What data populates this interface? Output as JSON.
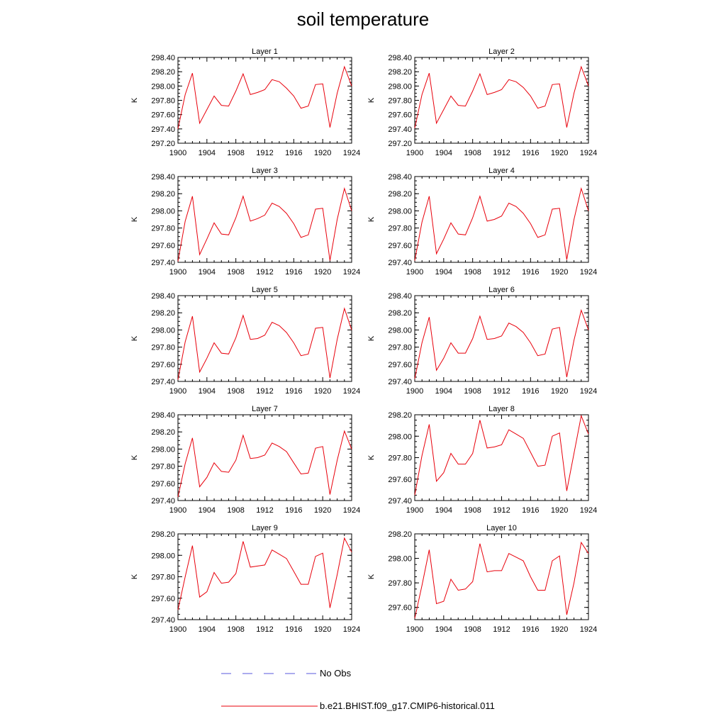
{
  "title": "soil temperature",
  "legend": {
    "no_obs_label": "No Obs",
    "model_label": "b.e21.BHIST.f09_g17.CMIP6-historical.011",
    "no_obs_color": "#5a5adc",
    "model_color": "#e8000b"
  },
  "chart_data": [
    {
      "type": "line",
      "title": "Layer 1",
      "ylabel": "K",
      "xlim": [
        1900,
        1924
      ],
      "ylim": [
        297.2,
        298.4
      ],
      "xticks": [
        "1900",
        "1904",
        "1908",
        "1912",
        "1916",
        "1920",
        "1924"
      ],
      "yticks": [
        "297.20",
        "297.40",
        "297.60",
        "297.80",
        "298.00",
        "298.20",
        "298.40"
      ],
      "series": [
        {
          "name": "b.e21.BHIST.f09_g17.CMIP6-historical.011",
          "x": [
            1900,
            1901,
            1902,
            1903,
            1904,
            1905,
            1906,
            1907,
            1908,
            1909,
            1910,
            1911,
            1912,
            1913,
            1914,
            1915,
            1916,
            1917,
            1918,
            1919,
            1920,
            1921,
            1922,
            1923,
            1924
          ],
          "y": [
            297.4,
            297.88,
            298.18,
            297.48,
            297.67,
            297.86,
            297.73,
            297.72,
            297.93,
            298.17,
            297.88,
            297.91,
            297.95,
            298.09,
            298.06,
            297.97,
            297.86,
            297.69,
            297.72,
            298.02,
            298.03,
            297.42,
            297.9,
            298.27,
            298.0
          ]
        }
      ]
    },
    {
      "type": "line",
      "title": "Layer 2",
      "ylabel": "K",
      "xlim": [
        1900,
        1924
      ],
      "ylim": [
        297.2,
        298.4
      ],
      "xticks": [
        "1900",
        "1904",
        "1908",
        "1912",
        "1916",
        "1920",
        "1924"
      ],
      "yticks": [
        "297.20",
        "297.40",
        "297.60",
        "297.80",
        "298.00",
        "298.20",
        "298.40"
      ],
      "series": [
        {
          "name": "b.e21.BHIST.f09_g17.CMIP6-historical.011",
          "x": [
            1900,
            1901,
            1902,
            1903,
            1904,
            1905,
            1906,
            1907,
            1908,
            1909,
            1910,
            1911,
            1912,
            1913,
            1914,
            1915,
            1916,
            1917,
            1918,
            1919,
            1920,
            1921,
            1922,
            1923,
            1924
          ],
          "y": [
            297.41,
            297.88,
            298.18,
            297.48,
            297.67,
            297.86,
            297.73,
            297.72,
            297.93,
            298.17,
            297.88,
            297.91,
            297.95,
            298.09,
            298.06,
            297.98,
            297.86,
            297.69,
            297.72,
            298.02,
            298.03,
            297.42,
            297.9,
            298.27,
            298.0
          ]
        }
      ]
    },
    {
      "type": "line",
      "title": "Layer 3",
      "ylabel": "K",
      "xlim": [
        1900,
        1924
      ],
      "ylim": [
        297.4,
        298.4
      ],
      "xticks": [
        "1900",
        "1904",
        "1908",
        "1912",
        "1916",
        "1920",
        "1924"
      ],
      "yticks": [
        "297.40",
        "297.60",
        "297.80",
        "298.00",
        "298.20",
        "298.40"
      ],
      "series": [
        {
          "name": "b.e21.BHIST.f09_g17.CMIP6-historical.011",
          "x": [
            1900,
            1901,
            1902,
            1903,
            1904,
            1905,
            1906,
            1907,
            1908,
            1909,
            1910,
            1911,
            1912,
            1913,
            1914,
            1915,
            1916,
            1917,
            1918,
            1919,
            1920,
            1921,
            1922,
            1923,
            1924
          ],
          "y": [
            297.41,
            297.88,
            298.17,
            297.49,
            297.67,
            297.86,
            297.73,
            297.72,
            297.92,
            298.17,
            297.88,
            297.91,
            297.95,
            298.09,
            298.05,
            297.97,
            297.85,
            297.69,
            297.72,
            298.02,
            298.03,
            297.42,
            297.9,
            298.26,
            298.0
          ]
        }
      ]
    },
    {
      "type": "line",
      "title": "Layer 4",
      "ylabel": "K",
      "xlim": [
        1900,
        1924
      ],
      "ylim": [
        297.4,
        298.4
      ],
      "xticks": [
        "1900",
        "1904",
        "1908",
        "1912",
        "1916",
        "1920",
        "1924"
      ],
      "yticks": [
        "297.40",
        "297.60",
        "297.80",
        "298.00",
        "298.20",
        "298.40"
      ],
      "series": [
        {
          "name": "b.e21.BHIST.f09_g17.CMIP6-historical.011",
          "x": [
            1900,
            1901,
            1902,
            1903,
            1904,
            1905,
            1906,
            1907,
            1908,
            1909,
            1910,
            1911,
            1912,
            1913,
            1914,
            1915,
            1916,
            1917,
            1918,
            1919,
            1920,
            1921,
            1922,
            1923,
            1924
          ],
          "y": [
            297.42,
            297.87,
            298.17,
            297.5,
            297.67,
            297.86,
            297.73,
            297.72,
            297.92,
            298.17,
            297.88,
            297.9,
            297.94,
            298.09,
            298.05,
            297.97,
            297.85,
            297.69,
            297.72,
            298.02,
            298.03,
            297.43,
            297.9,
            298.26,
            298.0
          ]
        }
      ]
    },
    {
      "type": "line",
      "title": "Layer 5",
      "ylabel": "K",
      "xlim": [
        1900,
        1924
      ],
      "ylim": [
        297.4,
        298.4
      ],
      "xticks": [
        "1900",
        "1904",
        "1908",
        "1912",
        "1916",
        "1920",
        "1924"
      ],
      "yticks": [
        "297.40",
        "297.60",
        "297.80",
        "298.00",
        "298.20",
        "298.40"
      ],
      "series": [
        {
          "name": "b.e21.BHIST.f09_g17.CMIP6-historical.011",
          "x": [
            1900,
            1901,
            1902,
            1903,
            1904,
            1905,
            1906,
            1907,
            1908,
            1909,
            1910,
            1911,
            1912,
            1913,
            1914,
            1915,
            1916,
            1917,
            1918,
            1919,
            1920,
            1921,
            1922,
            1923,
            1924
          ],
          "y": [
            297.42,
            297.86,
            298.16,
            297.51,
            297.67,
            297.85,
            297.73,
            297.72,
            297.91,
            298.17,
            297.89,
            297.9,
            297.94,
            298.09,
            298.05,
            297.97,
            297.85,
            297.7,
            297.72,
            298.02,
            298.03,
            297.44,
            297.89,
            298.25,
            298.0
          ]
        }
      ]
    },
    {
      "type": "line",
      "title": "Layer 6",
      "ylabel": "K",
      "xlim": [
        1900,
        1924
      ],
      "ylim": [
        297.4,
        298.4
      ],
      "xticks": [
        "1900",
        "1904",
        "1908",
        "1912",
        "1916",
        "1920",
        "1924"
      ],
      "yticks": [
        "297.40",
        "297.60",
        "297.80",
        "298.00",
        "298.20",
        "298.40"
      ],
      "series": [
        {
          "name": "b.e21.BHIST.f09_g17.CMIP6-historical.011",
          "x": [
            1900,
            1901,
            1902,
            1903,
            1904,
            1905,
            1906,
            1907,
            1908,
            1909,
            1910,
            1911,
            1912,
            1913,
            1914,
            1915,
            1916,
            1917,
            1918,
            1919,
            1920,
            1921,
            1922,
            1923,
            1924
          ],
          "y": [
            297.43,
            297.85,
            298.15,
            297.53,
            297.67,
            297.85,
            297.73,
            297.73,
            297.9,
            298.16,
            297.89,
            297.9,
            297.93,
            298.08,
            298.04,
            297.97,
            297.85,
            297.7,
            297.72,
            298.01,
            298.03,
            297.45,
            297.88,
            298.23,
            298.0
          ]
        }
      ]
    },
    {
      "type": "line",
      "title": "Layer 7",
      "ylabel": "K",
      "xlim": [
        1900,
        1924
      ],
      "ylim": [
        297.4,
        298.4
      ],
      "xticks": [
        "1900",
        "1904",
        "1908",
        "1912",
        "1916",
        "1920",
        "1924"
      ],
      "yticks": [
        "297.40",
        "297.60",
        "297.80",
        "298.00",
        "298.20",
        "298.40"
      ],
      "series": [
        {
          "name": "b.e21.BHIST.f09_g17.CMIP6-historical.011",
          "x": [
            1900,
            1901,
            1902,
            1903,
            1904,
            1905,
            1906,
            1907,
            1908,
            1909,
            1910,
            1911,
            1912,
            1913,
            1914,
            1915,
            1916,
            1917,
            1918,
            1919,
            1920,
            1921,
            1922,
            1923,
            1924
          ],
          "y": [
            297.44,
            297.83,
            298.13,
            297.56,
            297.67,
            297.84,
            297.74,
            297.73,
            297.87,
            298.16,
            297.89,
            297.9,
            297.93,
            298.07,
            298.03,
            297.97,
            297.84,
            297.71,
            297.72,
            298.01,
            298.03,
            297.47,
            297.87,
            298.21,
            298.0
          ]
        }
      ]
    },
    {
      "type": "line",
      "title": "Layer 8",
      "ylabel": "K",
      "xlim": [
        1900,
        1924
      ],
      "ylim": [
        297.4,
        298.2
      ],
      "xticks": [
        "1900",
        "1904",
        "1908",
        "1912",
        "1916",
        "1920",
        "1924"
      ],
      "yticks": [
        "297.40",
        "297.60",
        "297.80",
        "298.00",
        "298.20"
      ],
      "series": [
        {
          "name": "b.e21.BHIST.f09_g17.CMIP6-historical.011",
          "x": [
            1900,
            1901,
            1902,
            1903,
            1904,
            1905,
            1906,
            1907,
            1908,
            1909,
            1910,
            1911,
            1912,
            1913,
            1914,
            1915,
            1916,
            1917,
            1918,
            1919,
            1920,
            1921,
            1922,
            1923,
            1924
          ],
          "y": [
            297.45,
            297.82,
            298.11,
            297.58,
            297.66,
            297.84,
            297.74,
            297.74,
            297.84,
            298.15,
            297.89,
            297.9,
            297.92,
            298.06,
            298.02,
            297.98,
            297.85,
            297.72,
            297.73,
            298.0,
            298.03,
            297.49,
            297.84,
            298.19,
            298.02
          ]
        }
      ]
    },
    {
      "type": "line",
      "title": "Layer 9",
      "ylabel": "K",
      "xlim": [
        1900,
        1924
      ],
      "ylim": [
        297.4,
        298.2
      ],
      "xticks": [
        "1900",
        "1904",
        "1908",
        "1912",
        "1916",
        "1920",
        "1924"
      ],
      "yticks": [
        "297.40",
        "297.60",
        "297.80",
        "298.00",
        "298.20"
      ],
      "series": [
        {
          "name": "b.e21.BHIST.f09_g17.CMIP6-historical.011",
          "x": [
            1900,
            1901,
            1902,
            1903,
            1904,
            1905,
            1906,
            1907,
            1908,
            1909,
            1910,
            1911,
            1912,
            1913,
            1914,
            1915,
            1916,
            1917,
            1918,
            1919,
            1920,
            1921,
            1922,
            1923,
            1924
          ],
          "y": [
            297.49,
            297.8,
            298.09,
            297.61,
            297.66,
            297.84,
            297.74,
            297.75,
            297.83,
            298.13,
            297.89,
            297.9,
            297.91,
            298.05,
            298.01,
            297.97,
            297.85,
            297.73,
            297.73,
            297.99,
            298.02,
            297.51,
            297.82,
            298.16,
            298.03
          ]
        }
      ]
    },
    {
      "type": "line",
      "title": "Layer 10",
      "ylabel": "K",
      "xlim": [
        1900,
        1924
      ],
      "ylim": [
        297.5,
        298.2
      ],
      "xticks": [
        "1900",
        "1904",
        "1908",
        "1912",
        "1916",
        "1920",
        "1924"
      ],
      "yticks": [
        "297.60",
        "297.80",
        "298.00",
        "298.20"
      ],
      "yticks_values": [
        297.6,
        297.8,
        298.0,
        298.2
      ],
      "series": [
        {
          "name": "b.e21.BHIST.f09_g17.CMIP6-historical.011",
          "x": [
            1900,
            1901,
            1902,
            1903,
            1904,
            1905,
            1906,
            1907,
            1908,
            1909,
            1910,
            1911,
            1912,
            1913,
            1914,
            1915,
            1916,
            1917,
            1918,
            1919,
            1920,
            1921,
            1922,
            1923,
            1924
          ],
          "y": [
            297.51,
            297.78,
            298.07,
            297.63,
            297.65,
            297.83,
            297.74,
            297.75,
            297.81,
            298.12,
            297.89,
            297.9,
            297.9,
            298.04,
            298.01,
            297.98,
            297.85,
            297.74,
            297.74,
            297.98,
            298.02,
            297.54,
            297.8,
            298.13,
            298.04
          ]
        }
      ]
    }
  ]
}
